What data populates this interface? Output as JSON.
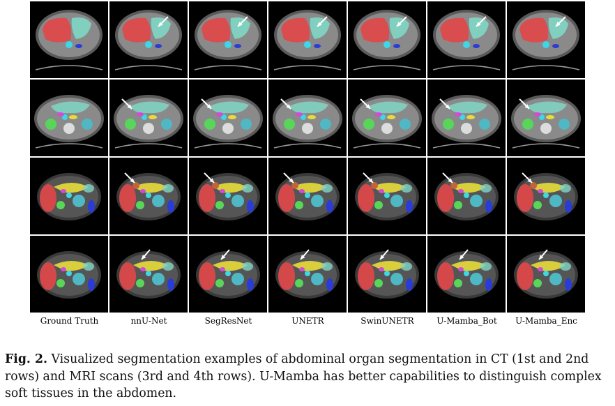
{
  "methods": [
    "Ground Truth",
    "nnU-Net",
    "SegResNet",
    "UNETR",
    "SwinUNETR",
    "U-Mamba_Bot",
    "U-Mamba_Enc"
  ],
  "rows": [
    {
      "modality": "CT",
      "view": "ct-liver"
    },
    {
      "modality": "CT",
      "view": "ct-kidney"
    },
    {
      "modality": "MRI",
      "view": "mri-1"
    },
    {
      "modality": "MRI",
      "view": "mri-2"
    }
  ],
  "caption": {
    "label": "Fig. 2.",
    "text": " Visualized segmentation examples of abdominal organ segmentation in CT (1st and 2nd rows) and MRI scans (3rd and 4th rows). U-Mamba has better capabilities to distinguish complex soft tissues in the abdomen."
  },
  "colors": {
    "liver": "#e0484a",
    "spleen_stomach": "#7fd6c4",
    "aorta": "#3fd6e8",
    "kidney_left": "#58d65a",
    "kidney_right": "#4fb8c4",
    "pancreas": "#e8dc3a",
    "gallbladder": "#c2643a",
    "duodenum": "#d44ad8",
    "veins": "#2a3cd6",
    "arrow": "#ffffff"
  }
}
